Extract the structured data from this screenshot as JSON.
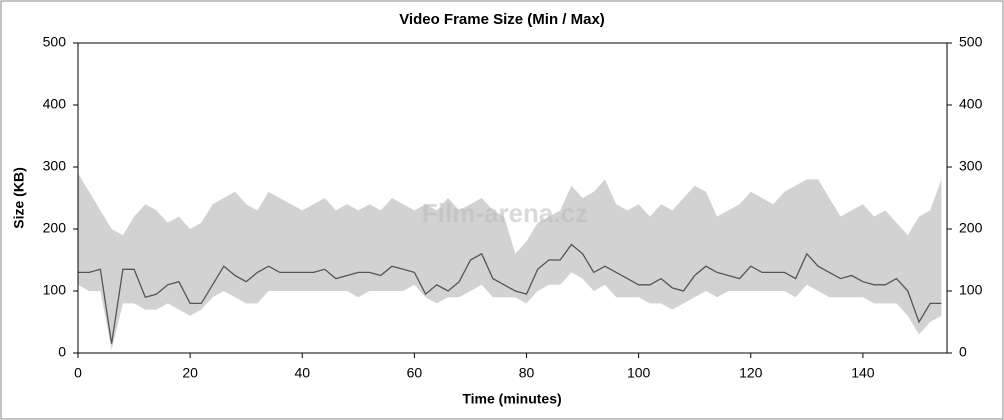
{
  "chart_data": {
    "type": "area",
    "title": "Video Frame Size (Min / Max)",
    "x_label": "Time (minutes)",
    "y_label": "Size (KB)",
    "watermark": "Film-arena.cz",
    "x": [
      0,
      2,
      4,
      6,
      8,
      10,
      12,
      14,
      16,
      18,
      20,
      22,
      24,
      26,
      28,
      30,
      32,
      34,
      36,
      38,
      40,
      42,
      44,
      46,
      48,
      50,
      52,
      54,
      56,
      58,
      60,
      62,
      64,
      66,
      68,
      70,
      72,
      74,
      76,
      78,
      80,
      82,
      84,
      86,
      88,
      90,
      92,
      94,
      96,
      98,
      100,
      102,
      104,
      106,
      108,
      110,
      112,
      114,
      116,
      118,
      120,
      122,
      124,
      126,
      128,
      130,
      132,
      134,
      136,
      138,
      140,
      142,
      144,
      146,
      148,
      150,
      152,
      154
    ],
    "series": [
      {
        "color": "#d2d2d2",
        "values": [
          290,
          260,
          230,
          200,
          190,
          220,
          240,
          230,
          210,
          220,
          200,
          210,
          240,
          250,
          260,
          240,
          230,
          260,
          250,
          240,
          230,
          240,
          250,
          230,
          240,
          230,
          240,
          230,
          250,
          240,
          230,
          240,
          230,
          250,
          230,
          240,
          250,
          230,
          220,
          160,
          180,
          210,
          220,
          230,
          270,
          250,
          260,
          280,
          240,
          230,
          240,
          220,
          240,
          230,
          250,
          270,
          260,
          220,
          230,
          240,
          260,
          250,
          240,
          260,
          270,
          280,
          280,
          250,
          220,
          230,
          240,
          220,
          230,
          210,
          190,
          220,
          230,
          280
        ]
      },
      {
        "color": "#ffffff",
        "values": [
          110,
          100,
          100,
          5,
          80,
          80,
          70,
          70,
          80,
          70,
          60,
          70,
          90,
          100,
          90,
          80,
          80,
          100,
          100,
          100,
          100,
          100,
          100,
          100,
          100,
          90,
          100,
          100,
          100,
          100,
          110,
          90,
          80,
          90,
          90,
          100,
          110,
          90,
          90,
          90,
          80,
          100,
          110,
          110,
          130,
          120,
          100,
          110,
          90,
          90,
          90,
          80,
          80,
          70,
          80,
          90,
          100,
          90,
          100,
          100,
          100,
          100,
          100,
          100,
          90,
          110,
          100,
          90,
          90,
          90,
          90,
          80,
          80,
          80,
          60,
          30,
          50,
          60
        ]
      },
      {
        "color": "#555555",
        "values": [
          130,
          130,
          135,
          15,
          135,
          135,
          90,
          95,
          110,
          115,
          80,
          80,
          110,
          140,
          125,
          115,
          130,
          140,
          130,
          130,
          130,
          130,
          135,
          120,
          125,
          130,
          130,
          125,
          140,
          135,
          130,
          95,
          110,
          100,
          115,
          150,
          160,
          120,
          110,
          100,
          95,
          135,
          150,
          150,
          175,
          160,
          130,
          140,
          130,
          120,
          110,
          110,
          120,
          105,
          100,
          125,
          140,
          130,
          125,
          120,
          140,
          130,
          130,
          130,
          120,
          160,
          140,
          130,
          120,
          125,
          115,
          110,
          110,
          120,
          100,
          50,
          80,
          80
        ]
      }
    ],
    "xlim": [
      0,
      155
    ],
    "xticks": [
      0,
      20,
      40,
      60,
      80,
      100,
      120,
      140
    ],
    "ylim": [
      0,
      500
    ],
    "yticks": [
      0,
      100,
      200,
      300,
      400,
      500
    ],
    "y2lim": [
      0,
      500
    ],
    "y2ticks": [
      0,
      100,
      200,
      300,
      400,
      500
    ]
  }
}
